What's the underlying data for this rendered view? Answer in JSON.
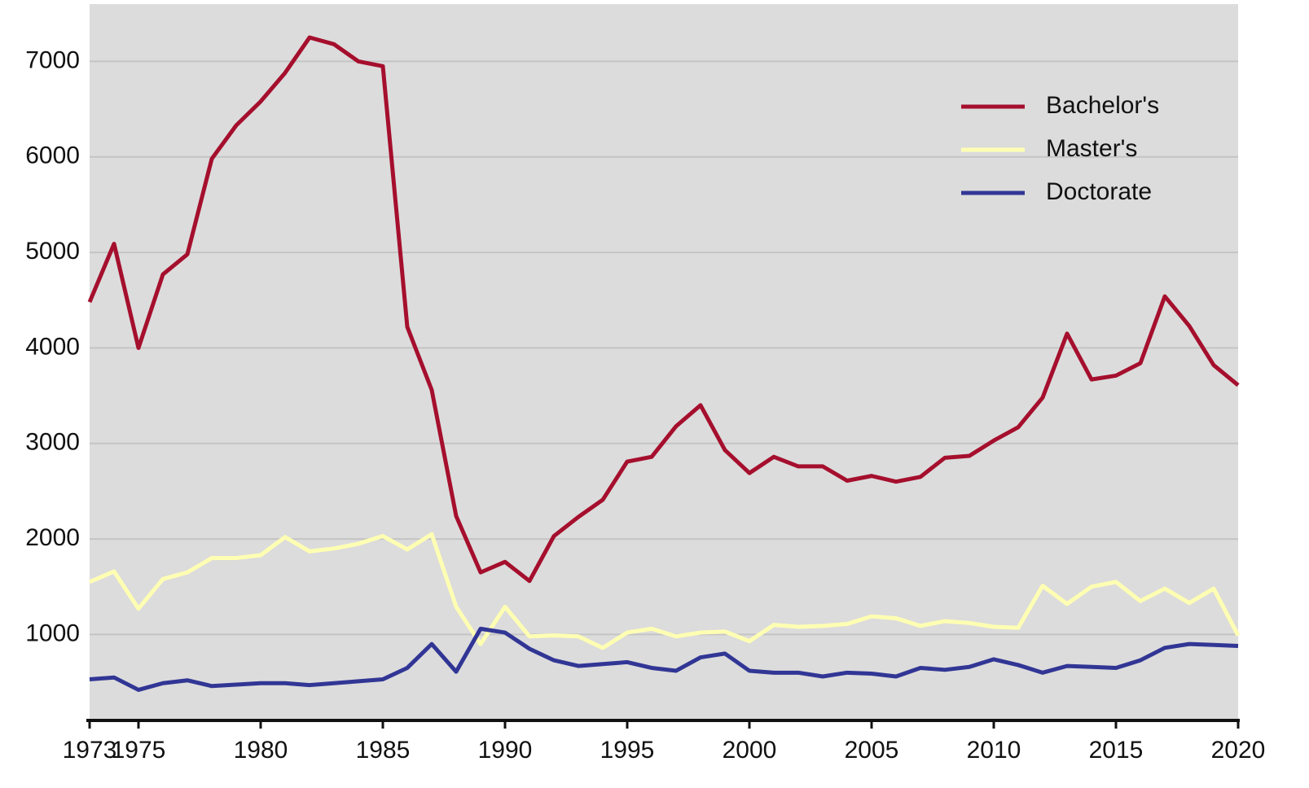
{
  "chart_data": {
    "type": "line",
    "x": [
      1973,
      1974,
      1975,
      1976,
      1977,
      1978,
      1979,
      1980,
      1981,
      1982,
      1983,
      1984,
      1985,
      1986,
      1987,
      1988,
      1989,
      1990,
      1991,
      1992,
      1993,
      1994,
      1995,
      1996,
      1997,
      1998,
      1999,
      2000,
      2001,
      2002,
      2003,
      2004,
      2005,
      2006,
      2007,
      2008,
      2009,
      2010,
      2011,
      2012,
      2013,
      2014,
      2015,
      2016,
      2017,
      2018,
      2019,
      2020
    ],
    "series": [
      {
        "name": "Bachelor's",
        "color": "#a50f2d",
        "values": [
          4480,
          5090,
          4000,
          4770,
          4980,
          5980,
          6330,
          6580,
          6880,
          7250,
          7180,
          7000,
          6950,
          4220,
          3560,
          2240,
          1650,
          1760,
          1560,
          2030,
          2230,
          2410,
          2810,
          2860,
          3180,
          3400,
          2930,
          2690,
          2860,
          2760,
          2760,
          2610,
          2660,
          2600,
          2650,
          2850,
          2870,
          3030,
          3170,
          3480,
          4150,
          3670,
          3710,
          3840,
          4540,
          4230,
          3820,
          3610
        ]
      },
      {
        "name": "Master's",
        "color": "#ffffb3",
        "values": [
          1550,
          1660,
          1270,
          1580,
          1650,
          1800,
          1800,
          1830,
          2020,
          1870,
          1900,
          1950,
          2030,
          1890,
          2050,
          1290,
          900,
          1290,
          980,
          990,
          980,
          860,
          1020,
          1060,
          980,
          1020,
          1030,
          930,
          1100,
          1080,
          1090,
          1110,
          1190,
          1170,
          1090,
          1140,
          1120,
          1080,
          1070,
          1510,
          1320,
          1500,
          1550,
          1350,
          1480,
          1330,
          1480,
          990
        ]
      },
      {
        "name": "Doctorate",
        "color": "#313695",
        "values": [
          530,
          550,
          420,
          490,
          520,
          460,
          475,
          490,
          490,
          470,
          490,
          510,
          530,
          650,
          900,
          610,
          1060,
          1020,
          850,
          730,
          670,
          690,
          710,
          650,
          620,
          760,
          800,
          620,
          600,
          600,
          560,
          600,
          590,
          560,
          650,
          630,
          660,
          740,
          680,
          600,
          670,
          660,
          650,
          730,
          860,
          900,
          890,
          880
        ]
      }
    ],
    "xlim": [
      1973,
      2020
    ],
    "xticks": [
      1973,
      1975,
      1980,
      1985,
      1990,
      1995,
      2000,
      2005,
      2010,
      2015,
      2020
    ],
    "ylim": [
      100,
      7600
    ],
    "yticks": [
      1000,
      2000,
      3000,
      4000,
      5000,
      6000,
      7000
    ],
    "grid": true,
    "legend": "upper right"
  }
}
